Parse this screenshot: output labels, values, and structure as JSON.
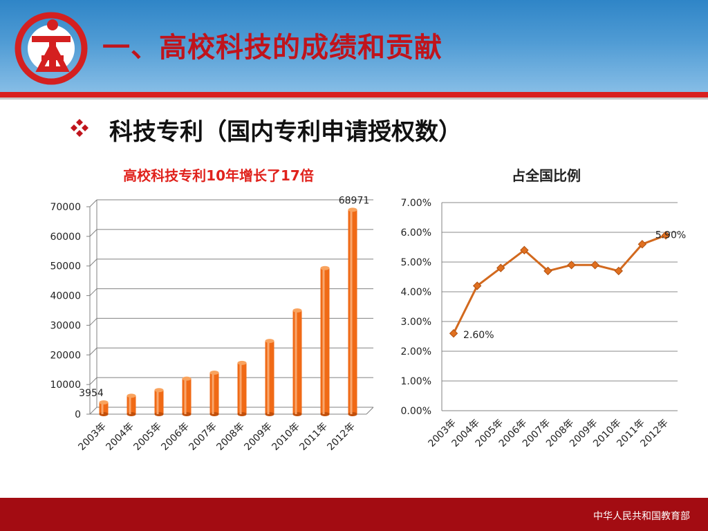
{
  "header": {
    "title": "一、高校科技的成绩和贡献"
  },
  "subtitle": "科技专利（国内专利申请授权数）",
  "footer": {
    "text": "中华人民共和国教育部"
  },
  "colors": {
    "accent_red": "#c0141c",
    "bar_orange": "#f06a16",
    "line_orange": "#d2691e",
    "footer": "#a30c12"
  },
  "chart_data": [
    {
      "type": "bar",
      "title": "高校科技专利10年增长了17倍",
      "categories": [
        "2003年",
        "2004年",
        "2005年",
        "2006年",
        "2007年",
        "2008年",
        "2009年",
        "2010年",
        "2011年",
        "2012年"
      ],
      "values": [
        3954,
        6200,
        8100,
        12000,
        14000,
        17300,
        24700,
        35000,
        49300,
        68971
      ],
      "data_labels": {
        "2003年": "3954",
        "2012年": "68971"
      },
      "yticks": [
        "0",
        "10000",
        "20000",
        "30000",
        "40000",
        "50000",
        "60000",
        "70000"
      ],
      "ylim": [
        0,
        70000
      ],
      "grid": true,
      "style": "3d-cylinder"
    },
    {
      "type": "line",
      "title": "占全国比例",
      "categories": [
        "2003年",
        "2004年",
        "2005年",
        "2006年",
        "2007年",
        "2008年",
        "2009年",
        "2010年",
        "2011年",
        "2012年"
      ],
      "values": [
        2.6,
        4.2,
        4.8,
        5.4,
        4.7,
        4.9,
        4.9,
        4.7,
        5.6,
        5.9
      ],
      "data_labels": {
        "2003年": "2.60%",
        "2012年": "5.90%"
      },
      "yticks": [
        "0.00%",
        "1.00%",
        "2.00%",
        "3.00%",
        "4.00%",
        "5.00%",
        "6.00%",
        "7.00%"
      ],
      "ylim": [
        0,
        7
      ],
      "grid": true,
      "marker": "diamond"
    }
  ]
}
